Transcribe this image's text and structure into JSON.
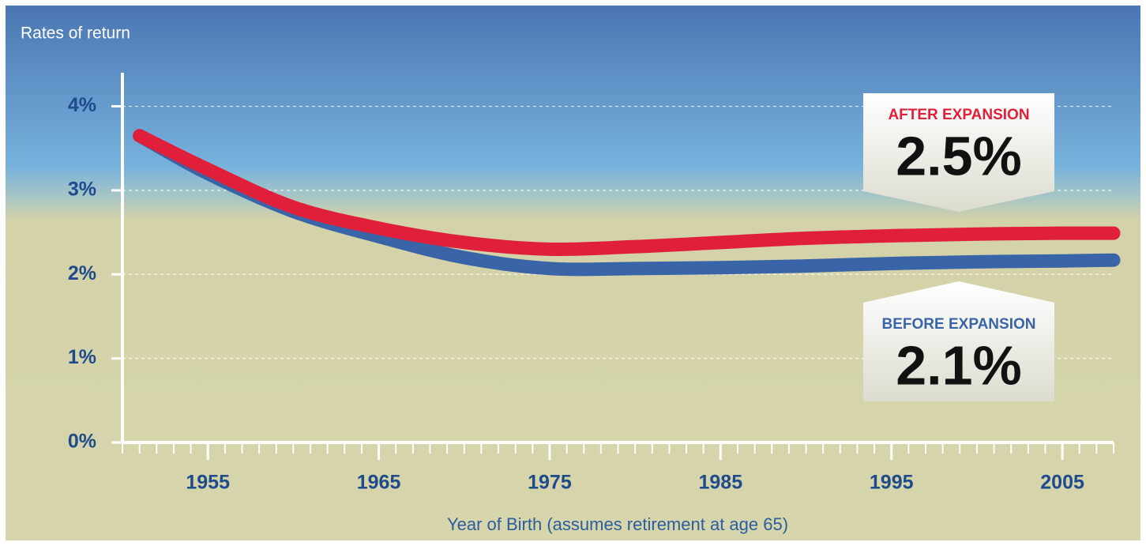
{
  "chart_data": {
    "type": "line",
    "title": "Rates of return",
    "x_label": "Year of Birth (assumes retirement at age 65)",
    "x": [
      1951,
      1955,
      1960,
      1965,
      1970,
      1975,
      1980,
      1985,
      1990,
      1995,
      2000,
      2005,
      2008
    ],
    "series": [
      {
        "name": "AFTER EXPANSION",
        "callout": "2.5%",
        "color": "#e0203a",
        "values": [
          3.65,
          3.25,
          2.8,
          2.55,
          2.38,
          2.3,
          2.33,
          2.38,
          2.43,
          2.46,
          2.48,
          2.49,
          2.49
        ]
      },
      {
        "name": "BEFORE EXPANSION",
        "callout": "2.1%",
        "color": "#3a64a8",
        "values": [
          3.65,
          3.2,
          2.75,
          2.45,
          2.2,
          2.07,
          2.07,
          2.08,
          2.1,
          2.13,
          2.15,
          2.16,
          2.17
        ]
      }
    ],
    "xlim": [
      1950,
      2008
    ],
    "xticks": [
      1955,
      1965,
      1975,
      1985,
      1995,
      2005
    ],
    "minor_tick_interval": 1,
    "ylim": [
      0,
      4.4
    ],
    "yticks": [
      {
        "value": 0,
        "label": "0%"
      },
      {
        "value": 1,
        "label": "1%"
      },
      {
        "value": 2,
        "label": "2%"
      },
      {
        "value": 3,
        "label": "3%"
      },
      {
        "value": 4,
        "label": "4%"
      }
    ],
    "grid": true
  }
}
